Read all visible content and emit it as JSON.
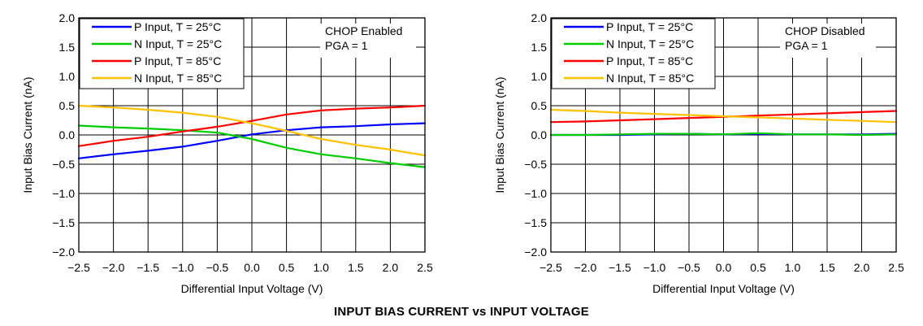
{
  "caption": "INPUT BIAS CURRENT vs INPUT VOLTAGE",
  "chart_data": [
    {
      "type": "line",
      "xlabel": "Differential Input Voltage (V)",
      "ylabel": "Input Bias Current (nA)",
      "xlim": [
        -2.5,
        2.5
      ],
      "ylim": [
        -2.0,
        2.0
      ],
      "xticks": [
        "−2.5",
        "−2.0",
        "−1.5",
        "−1.0",
        "−0.5",
        "0.0",
        "0.5",
        "1.0",
        "1.5",
        "2.0",
        "2.5"
      ],
      "yticks": [
        "−2.0",
        "−1.5",
        "−1.0",
        "−0.5",
        "0.0",
        "0.5",
        "1.0",
        "1.5",
        "2.0"
      ],
      "grid": true,
      "legend_position": "top-left",
      "annotation": [
        "CHOP Enabled",
        "PGA = 1"
      ],
      "series": [
        {
          "name": "P Input, T = 25°C",
          "color": "#0000ff",
          "x": [
            -2.5,
            -2.0,
            -1.5,
            -1.0,
            -0.5,
            0.0,
            0.5,
            1.0,
            1.5,
            2.0,
            2.5
          ],
          "y": [
            -0.4,
            -0.33,
            -0.27,
            -0.2,
            -0.1,
            0.01,
            0.08,
            0.13,
            0.15,
            0.18,
            0.2
          ]
        },
        {
          "name": "N Input, T = 25°C",
          "color": "#00cc00",
          "x": [
            -2.5,
            -2.0,
            -1.5,
            -1.0,
            -0.5,
            0.0,
            0.5,
            1.0,
            1.5,
            2.0,
            2.5
          ],
          "y": [
            0.16,
            0.13,
            0.11,
            0.08,
            0.04,
            -0.07,
            -0.22,
            -0.33,
            -0.4,
            -0.48,
            -0.55
          ]
        },
        {
          "name": "P Input, T = 85°C",
          "color": "#ff0000",
          "x": [
            -2.5,
            -2.0,
            -1.5,
            -1.0,
            -0.5,
            0.0,
            0.5,
            1.0,
            1.5,
            2.0,
            2.5
          ],
          "y": [
            -0.19,
            -0.1,
            -0.03,
            0.06,
            0.14,
            0.24,
            0.35,
            0.42,
            0.45,
            0.47,
            0.5
          ]
        },
        {
          "name": "N Input, T = 85°C",
          "color": "#ffc000",
          "x": [
            -2.5,
            -2.0,
            -1.5,
            -1.0,
            -0.5,
            0.0,
            0.5,
            1.0,
            1.5,
            2.0,
            2.5
          ],
          "y": [
            0.5,
            0.47,
            0.43,
            0.38,
            0.31,
            0.2,
            0.07,
            -0.07,
            -0.17,
            -0.25,
            -0.35
          ]
        }
      ]
    },
    {
      "type": "line",
      "xlabel": "Differential Input Voltage (V)",
      "ylabel": "Input Bias Current (nA)",
      "xlim": [
        -2.5,
        2.5
      ],
      "ylim": [
        -2.0,
        2.0
      ],
      "xticks": [
        "−2.5",
        "−2.0",
        "−1.5",
        "−1.0",
        "−0.5",
        "0.0",
        "0.5",
        "1.0",
        "1.5",
        "2.0",
        "2.5"
      ],
      "yticks": [
        "−2.0",
        "−1.5",
        "−1.0",
        "−0.5",
        "0.0",
        "0.5",
        "1.0",
        "1.5",
        "2.0"
      ],
      "grid": true,
      "legend_position": "top-left",
      "annotation": [
        "CHOP Disabled",
        "PGA = 1"
      ],
      "series": [
        {
          "name": "P Input, T = 25°C",
          "color": "#0000ff",
          "x": [
            -2.5,
            -2.0,
            -1.5,
            -1.0,
            -0.5,
            0.0,
            0.5,
            1.0,
            1.5,
            2.0,
            2.5
          ],
          "y": [
            0.0,
            0.0,
            0.0,
            0.01,
            0.02,
            0.01,
            0.02,
            0.01,
            0.01,
            0.01,
            0.02
          ]
        },
        {
          "name": "N Input, T = 25°C",
          "color": "#00cc00",
          "x": [
            -2.5,
            -2.0,
            -1.5,
            -1.0,
            -0.5,
            0.0,
            0.5,
            1.0,
            1.5,
            2.0,
            2.5
          ],
          "y": [
            0.0,
            0.0,
            0.01,
            0.02,
            0.02,
            0.01,
            0.03,
            0.01,
            0.01,
            0.0,
            0.01
          ]
        },
        {
          "name": "P Input, T = 85°C",
          "color": "#ff0000",
          "x": [
            -2.5,
            -2.0,
            -1.5,
            -1.0,
            -0.5,
            0.0,
            0.5,
            1.0,
            1.5,
            2.0,
            2.5
          ],
          "y": [
            0.22,
            0.23,
            0.25,
            0.27,
            0.29,
            0.31,
            0.33,
            0.35,
            0.37,
            0.39,
            0.41
          ]
        },
        {
          "name": "N Input, T = 85°C",
          "color": "#ffc000",
          "x": [
            -2.5,
            -2.0,
            -1.5,
            -1.0,
            -0.5,
            0.0,
            0.5,
            1.0,
            1.5,
            2.0,
            2.5
          ],
          "y": [
            0.43,
            0.41,
            0.38,
            0.36,
            0.34,
            0.32,
            0.3,
            0.28,
            0.26,
            0.24,
            0.22
          ]
        }
      ]
    }
  ]
}
